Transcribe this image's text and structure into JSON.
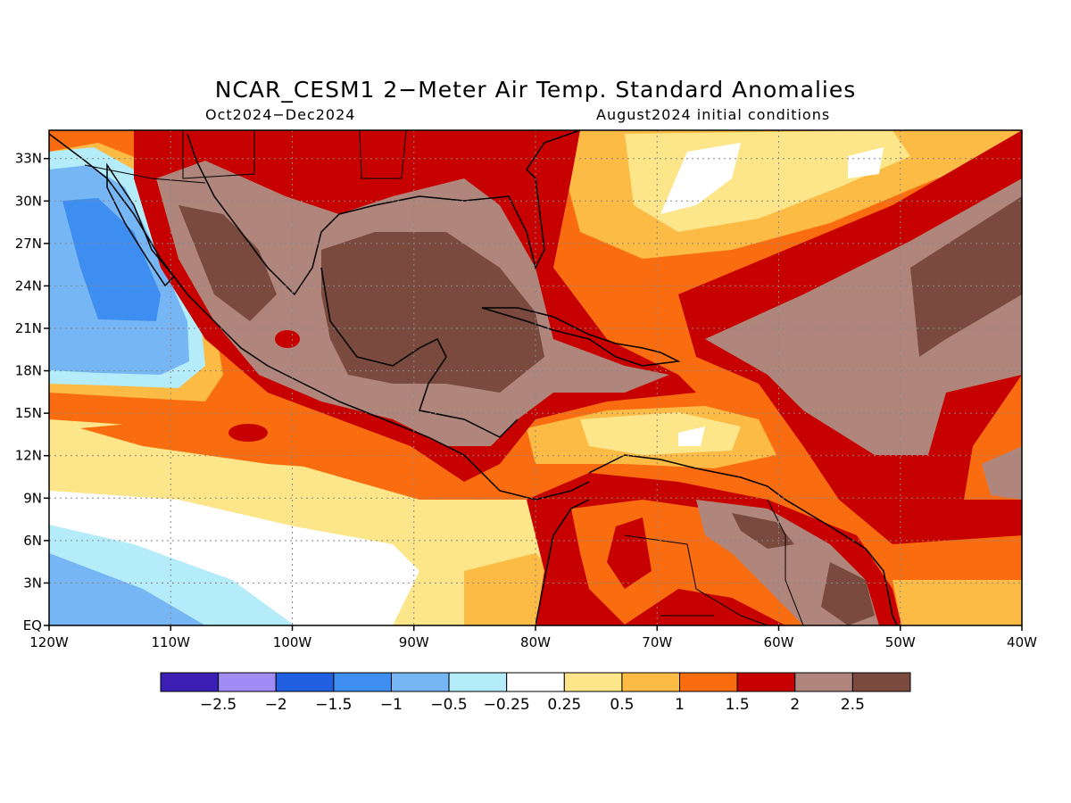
{
  "title": "NCAR_CESM1 2−Meter Air Temp. Standard Anomalies",
  "period": "Oct2024−Dec2024",
  "initial_conditions": "August2024 initial conditions",
  "map": {
    "lon_range": [
      -120,
      -40
    ],
    "lat_range": [
      0,
      35
    ],
    "lon_labels": [
      "120W",
      "110W",
      "100W",
      "90W",
      "80W",
      "70W",
      "60W",
      "50W",
      "40W"
    ],
    "lat_labels": [
      "33N",
      "30N",
      "27N",
      "24N",
      "21N",
      "18N",
      "15N",
      "12N",
      "9N",
      "6N",
      "3N",
      "EQ"
    ],
    "grid": "dotted"
  },
  "colorbar": {
    "colors": [
      "#3b1fb5",
      "#9f8cf7",
      "#1f5fe0",
      "#3d8ef0",
      "#76b6f5",
      "#b4ecfa",
      "#ffffff",
      "#fde58a",
      "#fbbb45",
      "#fa6c10",
      "#c70000",
      "#b0857b",
      "#7a4a3e"
    ],
    "labels": [
      "−2.5",
      "−2",
      "−1.5",
      "−1",
      "−0.5",
      "−0.25",
      "0.25",
      "0.5",
      "1",
      "1.5",
      "2",
      "2.5"
    ]
  }
}
